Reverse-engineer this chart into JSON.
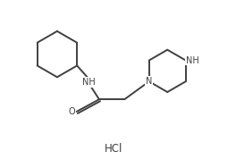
{
  "background_color": "#ffffff",
  "line_color": "#404040",
  "line_width": 1.4,
  "text_color": "#404040",
  "hcl_text": "HCl",
  "nh_label": "NH",
  "n_label": "N",
  "o_label": "O",
  "nh_pip_label": "NH",
  "font_size": 7.0,
  "hcl_font_size": 8.5
}
